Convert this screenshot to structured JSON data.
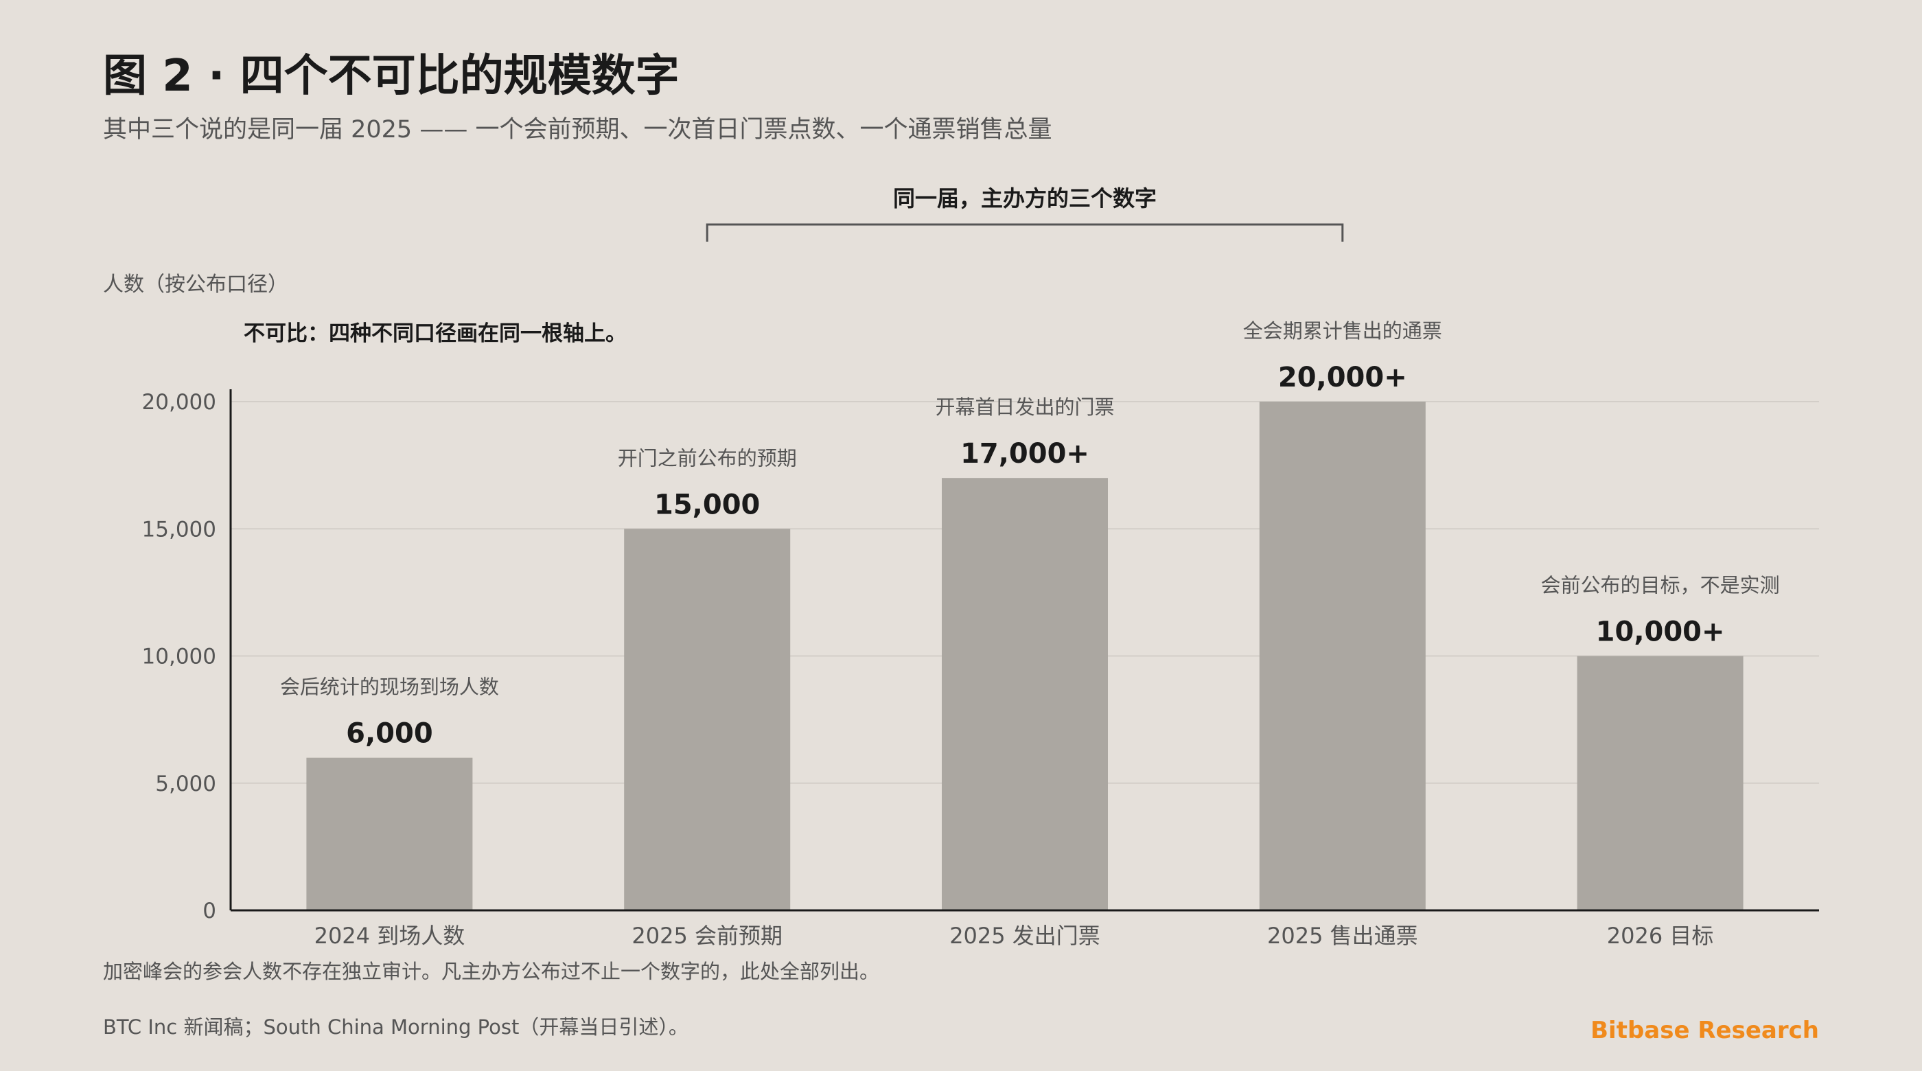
{
  "title": "图 2 · 四个不可比的规模数字",
  "subtitle": "其中三个说的是同一届 2025 —— 一个会前预期、一次首日门票点数、一个通票销售总量",
  "ylabel": "人数（按公布口径）",
  "annotation": "不可比：四种不同口径画在同一根轴上。",
  "bracket_label": "同一届，主办方的三个数字",
  "footnote": "加密峰会的参会人数不存在独立审计。凡主办方公布过不止一个数字的，此处全部列出。",
  "source": "BTC Inc 新闻稿；South China Morning Post（开幕当日引述）。",
  "brand": "Bitbase Research",
  "colors": {
    "background": "#e5e0da",
    "bar": "#aba7a1",
    "axis": "#1a1a1a",
    "grid": "#d3cec8",
    "bracket": "#555555",
    "brand": "#f08a1c"
  },
  "chart_data": {
    "type": "bar",
    "categories": [
      "2024 到场人数",
      "2025 会前预期",
      "2025 发出门票",
      "2025 售出通票",
      "2026 目标"
    ],
    "values": [
      6000,
      15000,
      17000,
      20000,
      10000
    ],
    "value_labels": [
      "6,000",
      "15,000",
      "17,000+",
      "20,000+",
      "10,000+"
    ],
    "descriptions": [
      "会后统计的现场到场人数",
      "开门之前公布的预期",
      "开幕首日发出的门票",
      "全会期累计售出的通票",
      "会前公布的目标，不是实测"
    ],
    "ylim": [
      0,
      20000
    ],
    "yticks": [
      0,
      5000,
      10000,
      15000,
      20000
    ],
    "ytick_labels": [
      "0",
      "5,000",
      "10,000",
      "15,000",
      "20,000"
    ],
    "grid": true,
    "bracket_span": [
      1,
      3
    ]
  }
}
